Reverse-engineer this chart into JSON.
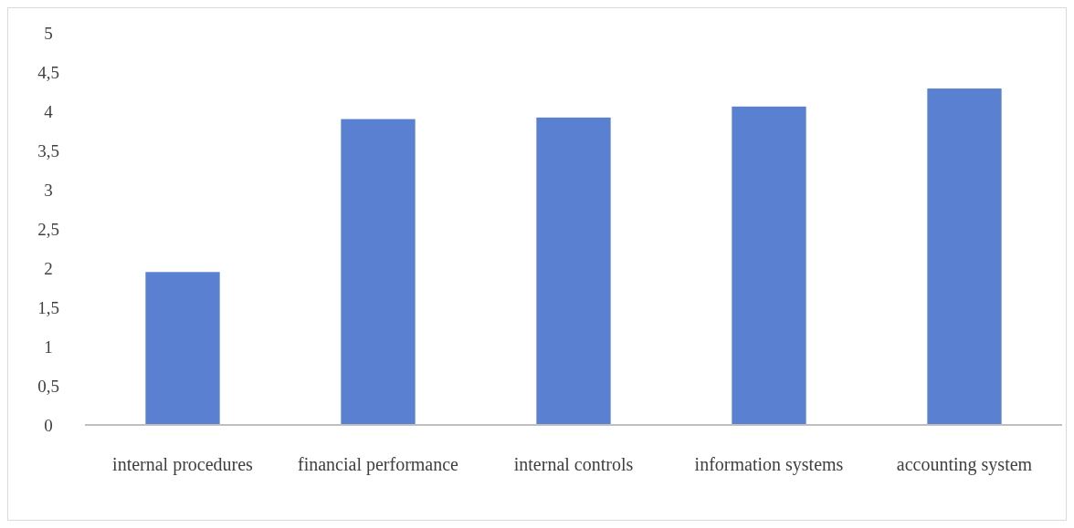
{
  "chart_data": {
    "type": "bar",
    "categories": [
      "internal procedures",
      "financial performance",
      "internal controls",
      "information systems",
      "accounting system"
    ],
    "values": [
      1.95,
      3.9,
      3.92,
      4.06,
      4.29
    ],
    "color": "#5a80d2",
    "ylim": [
      0,
      5
    ],
    "yticks": [
      0,
      {
        "value": 0.5,
        "label": "0,5"
      },
      1,
      {
        "value": 1.5,
        "label": "1,5"
      },
      2,
      {
        "value": 2.5,
        "label": "2,5"
      },
      3,
      {
        "value": 3.5,
        "label": "3,5"
      },
      4,
      {
        "value": 4.5,
        "label": "4,5"
      },
      5
    ],
    "grid": false
  }
}
